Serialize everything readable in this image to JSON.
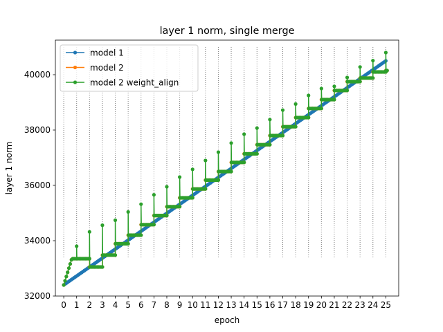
{
  "chart_data": {
    "type": "line",
    "title": "layer 1 norm, single merge",
    "xlabel": "epoch",
    "ylabel": "layer 1 norm",
    "xlim": [
      -0.65,
      26.0
    ],
    "ylim": [
      32000,
      41250
    ],
    "xticks": [
      0,
      1,
      2,
      3,
      4,
      5,
      6,
      7,
      8,
      9,
      10,
      11,
      12,
      13,
      14,
      15,
      16,
      17,
      18,
      19,
      20,
      21,
      22,
      23,
      24,
      25
    ],
    "xtick_labels": [
      "0",
      "1",
      "2",
      "3",
      "4",
      "5",
      "6",
      "7",
      "8",
      "9",
      "10",
      "11",
      "12",
      "13",
      "14",
      "15",
      "16",
      "17",
      "18",
      "19",
      "20",
      "21",
      "22",
      "23",
      "24",
      "25"
    ],
    "yticks": [
      32000,
      34000,
      36000,
      38000,
      40000
    ],
    "ytick_labels": [
      "32000",
      "34000",
      "36000",
      "38000",
      "40000"
    ],
    "vlines_at_epochs": [
      0,
      1,
      2,
      3,
      4,
      5,
      6,
      7,
      8,
      9,
      10,
      11,
      12,
      13,
      14,
      15,
      16,
      17,
      18,
      19,
      20,
      21,
      22,
      23,
      24,
      25
    ],
    "vline_style": "dotted gray",
    "legend_position": "upper left",
    "points_per_epoch": 10,
    "series": [
      {
        "name": "model 1",
        "color": "#1f77b4",
        "description": "Increases steadily and smoothly from about 32400 at epoch 0 to about 40500 at epoch 25",
        "start": 32400,
        "end": 40500
      },
      {
        "name": "model 2",
        "color": "#ff7f0e",
        "description": "Tracks model 1 for the first epoch, then forms flat plateaus within each epoch that step up each epoch",
        "epoch_levels": [
          32400,
          33350,
          33050,
          33480,
          33890,
          34200,
          34580,
          34910,
          35230,
          35550,
          35870,
          36190,
          36500,
          36830,
          37140,
          37470,
          37800,
          38120,
          38450,
          38780,
          39100,
          39430,
          39750,
          39880,
          40100,
          40150
        ]
      },
      {
        "name": "model 2 weight_align",
        "color": "#2ca02c",
        "description": "Spikes at the start of each epoch and then settles onto the model 2 plateau",
        "spike_peaks": [
          null,
          33800,
          34320,
          34560,
          34740,
          35040,
          35320,
          35660,
          35950,
          36300,
          36580,
          36900,
          37200,
          37530,
          37850,
          38070,
          38380,
          38720,
          38940,
          39250,
          39500,
          39580,
          39900,
          40280,
          40510,
          40800
        ]
      }
    ]
  }
}
